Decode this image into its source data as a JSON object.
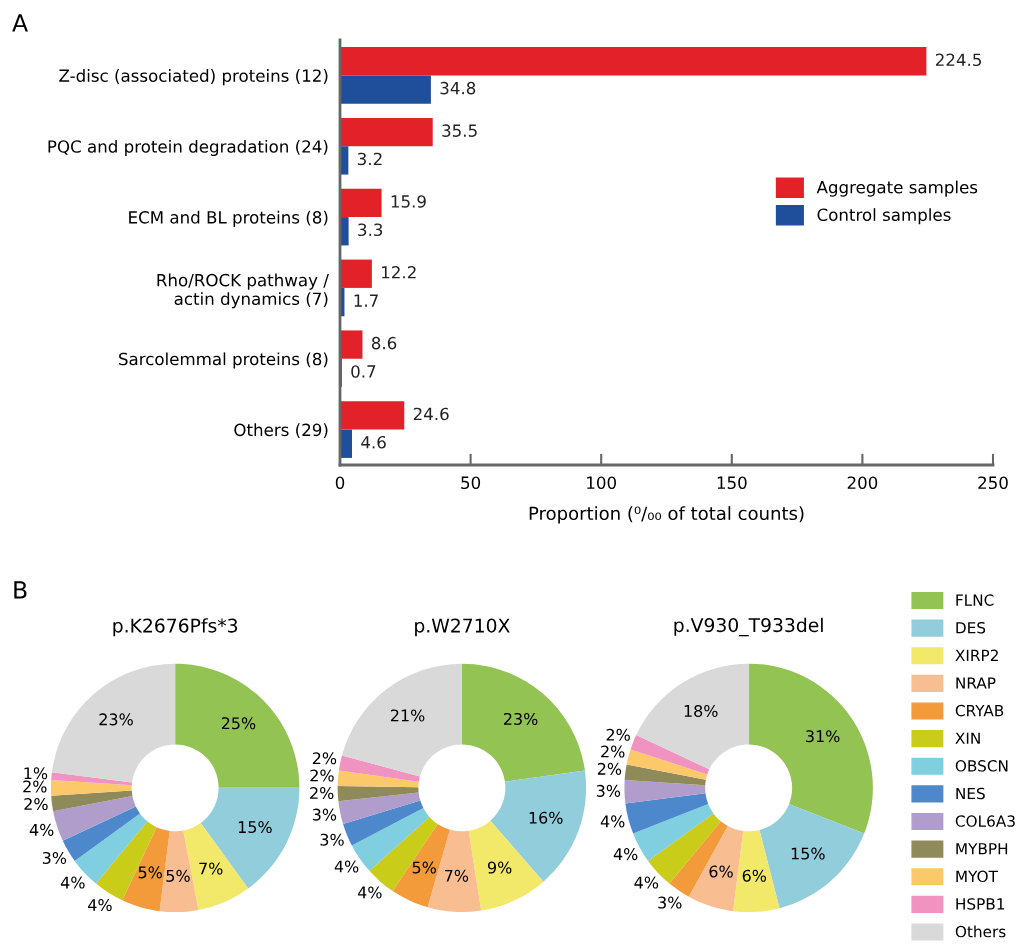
{
  "chart_data": [
    {
      "type": "bar",
      "orientation": "horizontal",
      "categories": [
        "Z-disc (associated) proteins (12)",
        "PQC and protein degradation (24)",
        "ECM and BL proteins (8)",
        "Rho/ROCK pathway /\nactin dynamics (7)",
        "Sarcolemmal proteins (8)",
        "Others (29)"
      ],
      "series": [
        {
          "name": "Aggregate samples",
          "color": "#e32129",
          "values": [
            224.5,
            35.5,
            15.9,
            12.2,
            8.6,
            24.6
          ]
        },
        {
          "name": "Control samples",
          "color": "#1f4e9a",
          "values": [
            34.8,
            3.2,
            3.3,
            1.7,
            0.7,
            4.6
          ]
        }
      ],
      "xlim": [
        0,
        250
      ],
      "xticks": [
        0,
        50,
        100,
        150,
        200,
        250
      ],
      "xlabel": "Proportion (⁰/₀₀ of total counts)",
      "data_labels": true,
      "legend": "right",
      "grid": false,
      "annotations": [
        "A"
      ]
    },
    {
      "type": "donut",
      "categories": [
        "FLNC",
        "DES",
        "XIRP2",
        "NRAP",
        "CRYAB",
        "XIN",
        "OBSCN",
        "NES",
        "COL6A3",
        "MYBPH",
        "MYOT",
        "HSPB1",
        "Others"
      ],
      "colors": [
        "#92c353",
        "#92cddc",
        "#f2e96a",
        "#f8be92",
        "#f39a3a",
        "#c9cc19",
        "#7fcfe0",
        "#4d88cc",
        "#b09dcb",
        "#8f8a5a",
        "#fcc96a",
        "#f093c0",
        "#d9d9d9"
      ],
      "series": [
        {
          "name": "p.K2676Pfs*3",
          "values": [
            25,
            15,
            7,
            5,
            5,
            4,
            4,
            3,
            4,
            2,
            2,
            1,
            23
          ],
          "value_labels": [
            "25%",
            "15%",
            "7%",
            "5%",
            "5%",
            "4%",
            "4%",
            "3%",
            "4%",
            "2%",
            "2%",
            "1%",
            "23%"
          ]
        },
        {
          "name": "p.W2710X",
          "values": [
            23,
            16,
            9,
            7,
            5,
            4,
            4,
            3,
            3,
            2,
            2,
            2,
            21
          ],
          "value_labels": [
            "23%",
            "16%",
            "9%",
            "7%",
            "5%",
            "4%",
            "4%",
            "3%",
            "3%",
            "2%",
            "2%",
            "2%",
            "21%"
          ]
        },
        {
          "name": "p.V930_T933del",
          "values": [
            31,
            15,
            6,
            6,
            3,
            4,
            4,
            4,
            3,
            2,
            2,
            2,
            18
          ],
          "value_labels": [
            "31%",
            "15%",
            "6%",
            "6%",
            "3%",
            "4%",
            "4%",
            "4%",
            "3%",
            "2%",
            "2%",
            "2%",
            "18%"
          ]
        }
      ],
      "legend": "right",
      "annotations": [
        "B"
      ]
    }
  ]
}
